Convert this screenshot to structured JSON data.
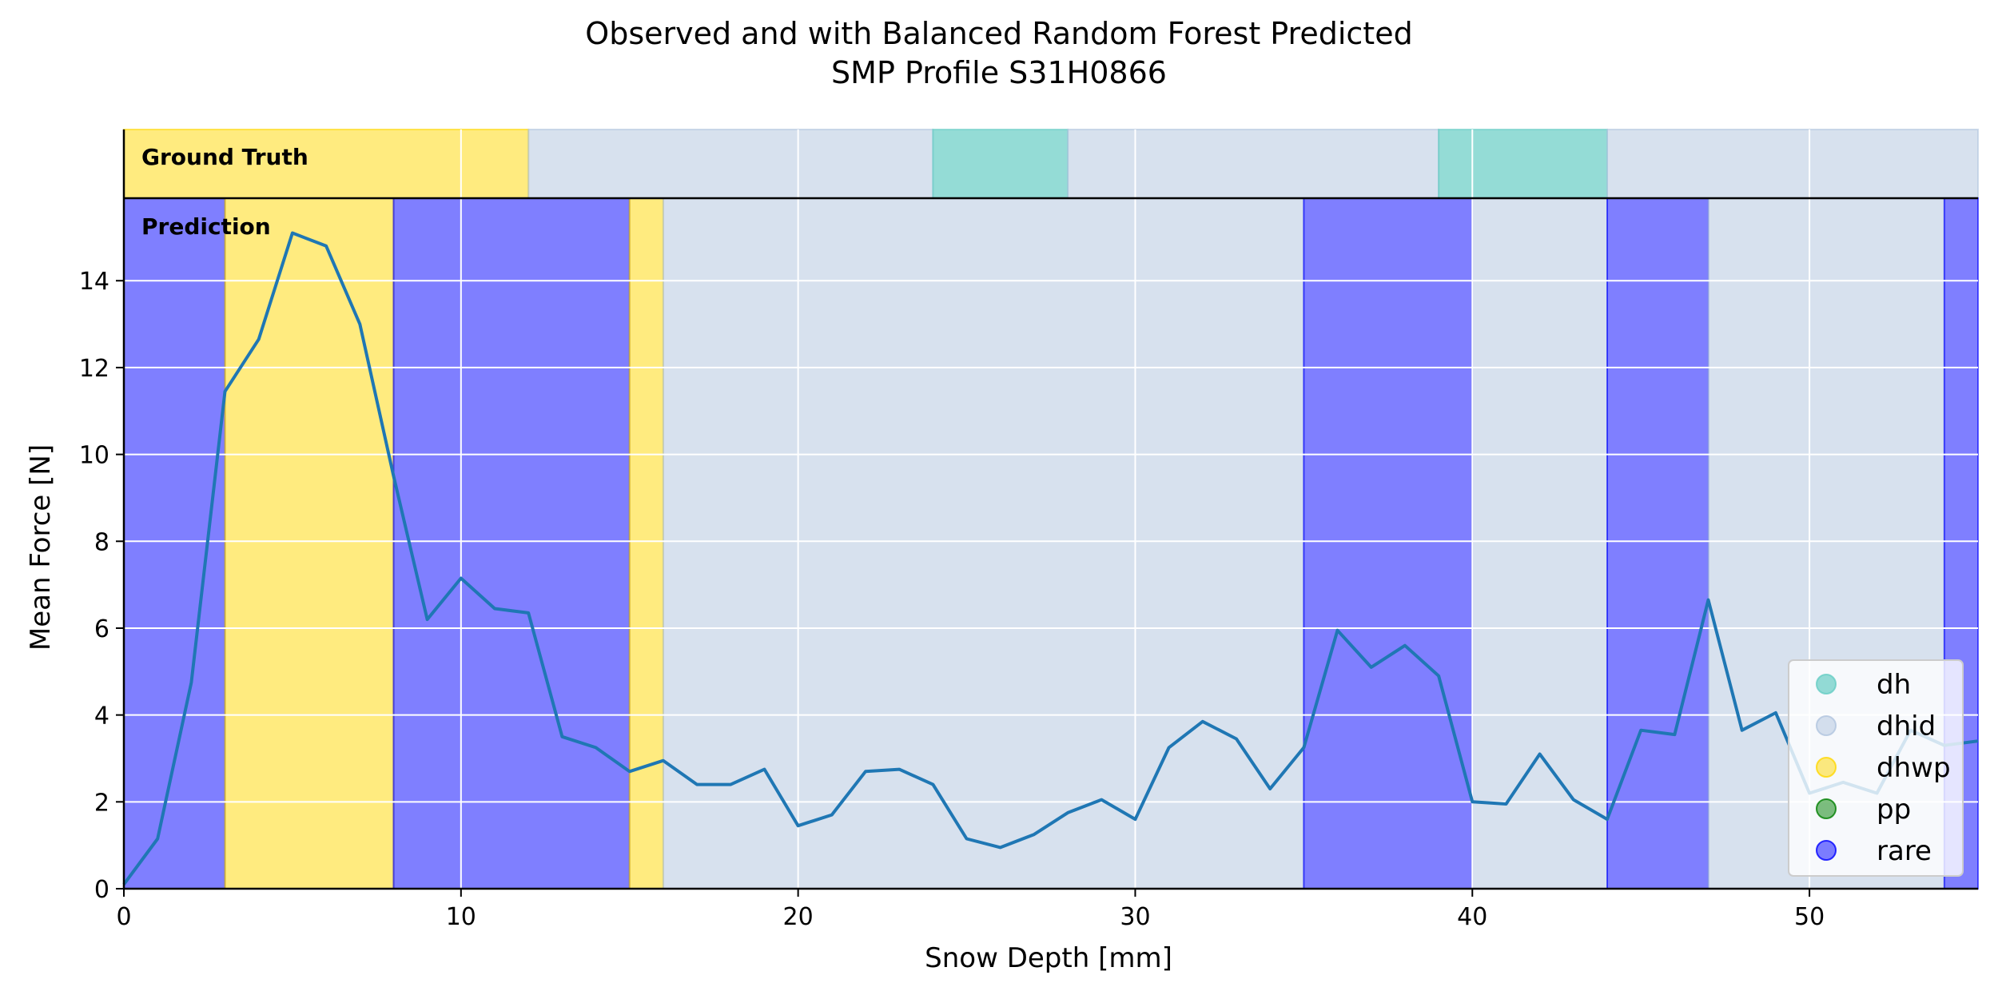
{
  "chart_data": {
    "type": "line",
    "title_line1": "Observed and with Balanced Random Forest Predicted",
    "title_line2": "SMP Profile S31H0866",
    "xlabel": "Snow Depth [mm]",
    "ylabel": "Mean Force [N]",
    "xlim": [
      0,
      55
    ],
    "ylim": [
      0,
      15.9
    ],
    "xticks": [
      0,
      10,
      20,
      30,
      40,
      50
    ],
    "yticks": [
      0,
      2,
      4,
      6,
      8,
      10,
      12,
      14
    ],
    "grid": true,
    "ground_truth_label": "Ground Truth",
    "prediction_label": "Prediction",
    "classes": [
      {
        "name": "dh",
        "color": "#66CDC4",
        "alpha": 0.7
      },
      {
        "name": "dhid",
        "color": "#B0C4DE",
        "alpha": 0.5
      },
      {
        "name": "dhwp",
        "color": "#FFD700",
        "alpha": 0.5
      },
      {
        "name": "pp",
        "color": "#008000",
        "alpha": 0.5
      },
      {
        "name": "rare",
        "color": "#0000FF",
        "alpha": 0.5
      }
    ],
    "ground_truth_segments": [
      {
        "start": 0,
        "end": 12,
        "class": "dhwp"
      },
      {
        "start": 12,
        "end": 24,
        "class": "dhid"
      },
      {
        "start": 24,
        "end": 28,
        "class": "dh"
      },
      {
        "start": 28,
        "end": 39,
        "class": "dhid"
      },
      {
        "start": 39,
        "end": 44,
        "class": "dh"
      },
      {
        "start": 44,
        "end": 55,
        "class": "dhid"
      }
    ],
    "prediction_segments": [
      {
        "start": 0,
        "end": 3,
        "class": "rare"
      },
      {
        "start": 3,
        "end": 8,
        "class": "dhwp"
      },
      {
        "start": 8,
        "end": 15,
        "class": "rare"
      },
      {
        "start": 15,
        "end": 16,
        "class": "dhwp"
      },
      {
        "start": 16,
        "end": 35,
        "class": "dhid"
      },
      {
        "start": 35,
        "end": 40,
        "class": "rare"
      },
      {
        "start": 40,
        "end": 44,
        "class": "dhid"
      },
      {
        "start": 44,
        "end": 47,
        "class": "rare"
      },
      {
        "start": 47,
        "end": 54,
        "class": "dhid"
      },
      {
        "start": 54,
        "end": 55,
        "class": "rare"
      }
    ],
    "series": [
      {
        "color": "#1f77b4",
        "x": [
          0,
          1,
          2,
          3,
          4,
          5,
          6,
          7,
          8,
          9,
          10,
          11,
          12,
          13,
          14,
          15,
          16,
          17,
          18,
          19,
          20,
          21,
          22,
          23,
          24,
          25,
          26,
          27,
          28,
          29,
          30,
          31,
          32,
          33,
          34,
          35,
          36,
          37,
          38,
          39,
          40,
          41,
          42,
          43,
          44,
          45,
          46,
          47,
          48,
          49,
          50,
          51,
          52,
          53,
          54,
          55
        ],
        "values": [
          0.1,
          1.15,
          4.75,
          11.45,
          12.65,
          15.1,
          14.8,
          13.0,
          9.5,
          6.2,
          7.15,
          6.45,
          6.35,
          3.5,
          3.25,
          2.7,
          2.95,
          2.4,
          2.4,
          2.75,
          1.45,
          1.7,
          2.7,
          2.75,
          2.4,
          1.15,
          0.95,
          1.25,
          1.75,
          2.05,
          1.6,
          3.25,
          3.85,
          3.45,
          2.3,
          3.25,
          5.95,
          5.1,
          5.6,
          4.9,
          2.0,
          1.95,
          3.1,
          2.05,
          1.6,
          3.65,
          3.55,
          6.65,
          3.65,
          4.05,
          2.2,
          2.45,
          2.2,
          3.65,
          3.3,
          3.4
        ]
      }
    ],
    "legend_position": "lower-right"
  }
}
